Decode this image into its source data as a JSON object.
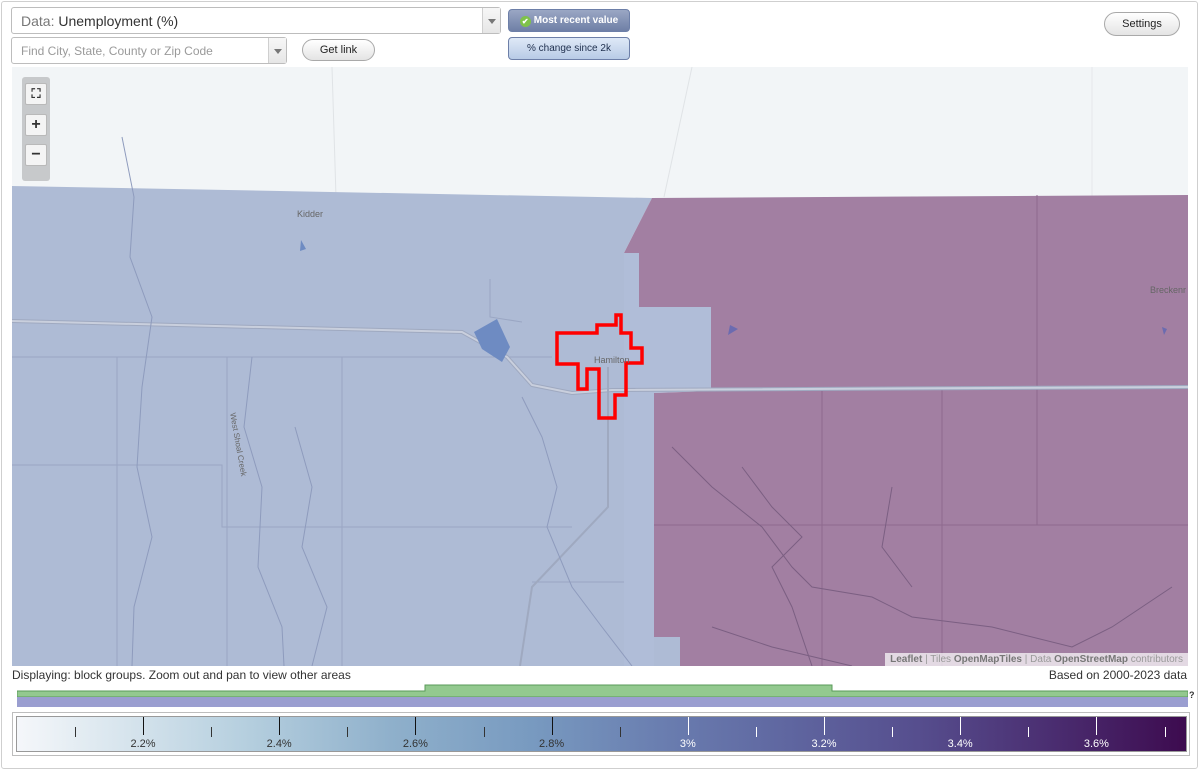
{
  "toolbar": {
    "data_prefix": "Data:",
    "data_value": "Unemployment (%)",
    "search_placeholder": "Find City, State, County or Zip Code",
    "get_link_label": "Get link",
    "toggle_recent_label": "Most recent value",
    "toggle_change_label": "% change since 2k",
    "settings_label": "Settings"
  },
  "map": {
    "labels": {
      "kidder": "Kidder",
      "hamilton": "Hamilton",
      "breckenridge": "Breckenr",
      "creek": "West Shoal Creek"
    },
    "attribution": {
      "leaflet": "Leaflet",
      "tiles_prefix": "| Tiles",
      "tiles": "OpenMapTiles",
      "data_prefix": "| Data",
      "data": "OpenStreetMap",
      "suffix": "contributors"
    },
    "colors": {
      "low_region": "#aebbd5",
      "high_region": "#a27fa2",
      "highlight_outline": "#ff0000"
    }
  },
  "footer": {
    "displaying": "Displaying: block groups. Zoom out and pan to view other areas",
    "based_on": "Based on 2000-2023 data",
    "help": "?"
  },
  "legend": {
    "ticks": [
      {
        "label": "2.2%",
        "light": false
      },
      {
        "label": "2.4%",
        "light": false
      },
      {
        "label": "2.6%",
        "light": false
      },
      {
        "label": "2.8%",
        "light": false
      },
      {
        "label": "3%",
        "light": true
      },
      {
        "label": "3.2%",
        "light": true
      },
      {
        "label": "3.4%",
        "light": true
      },
      {
        "label": "3.6%",
        "light": true
      }
    ]
  }
}
